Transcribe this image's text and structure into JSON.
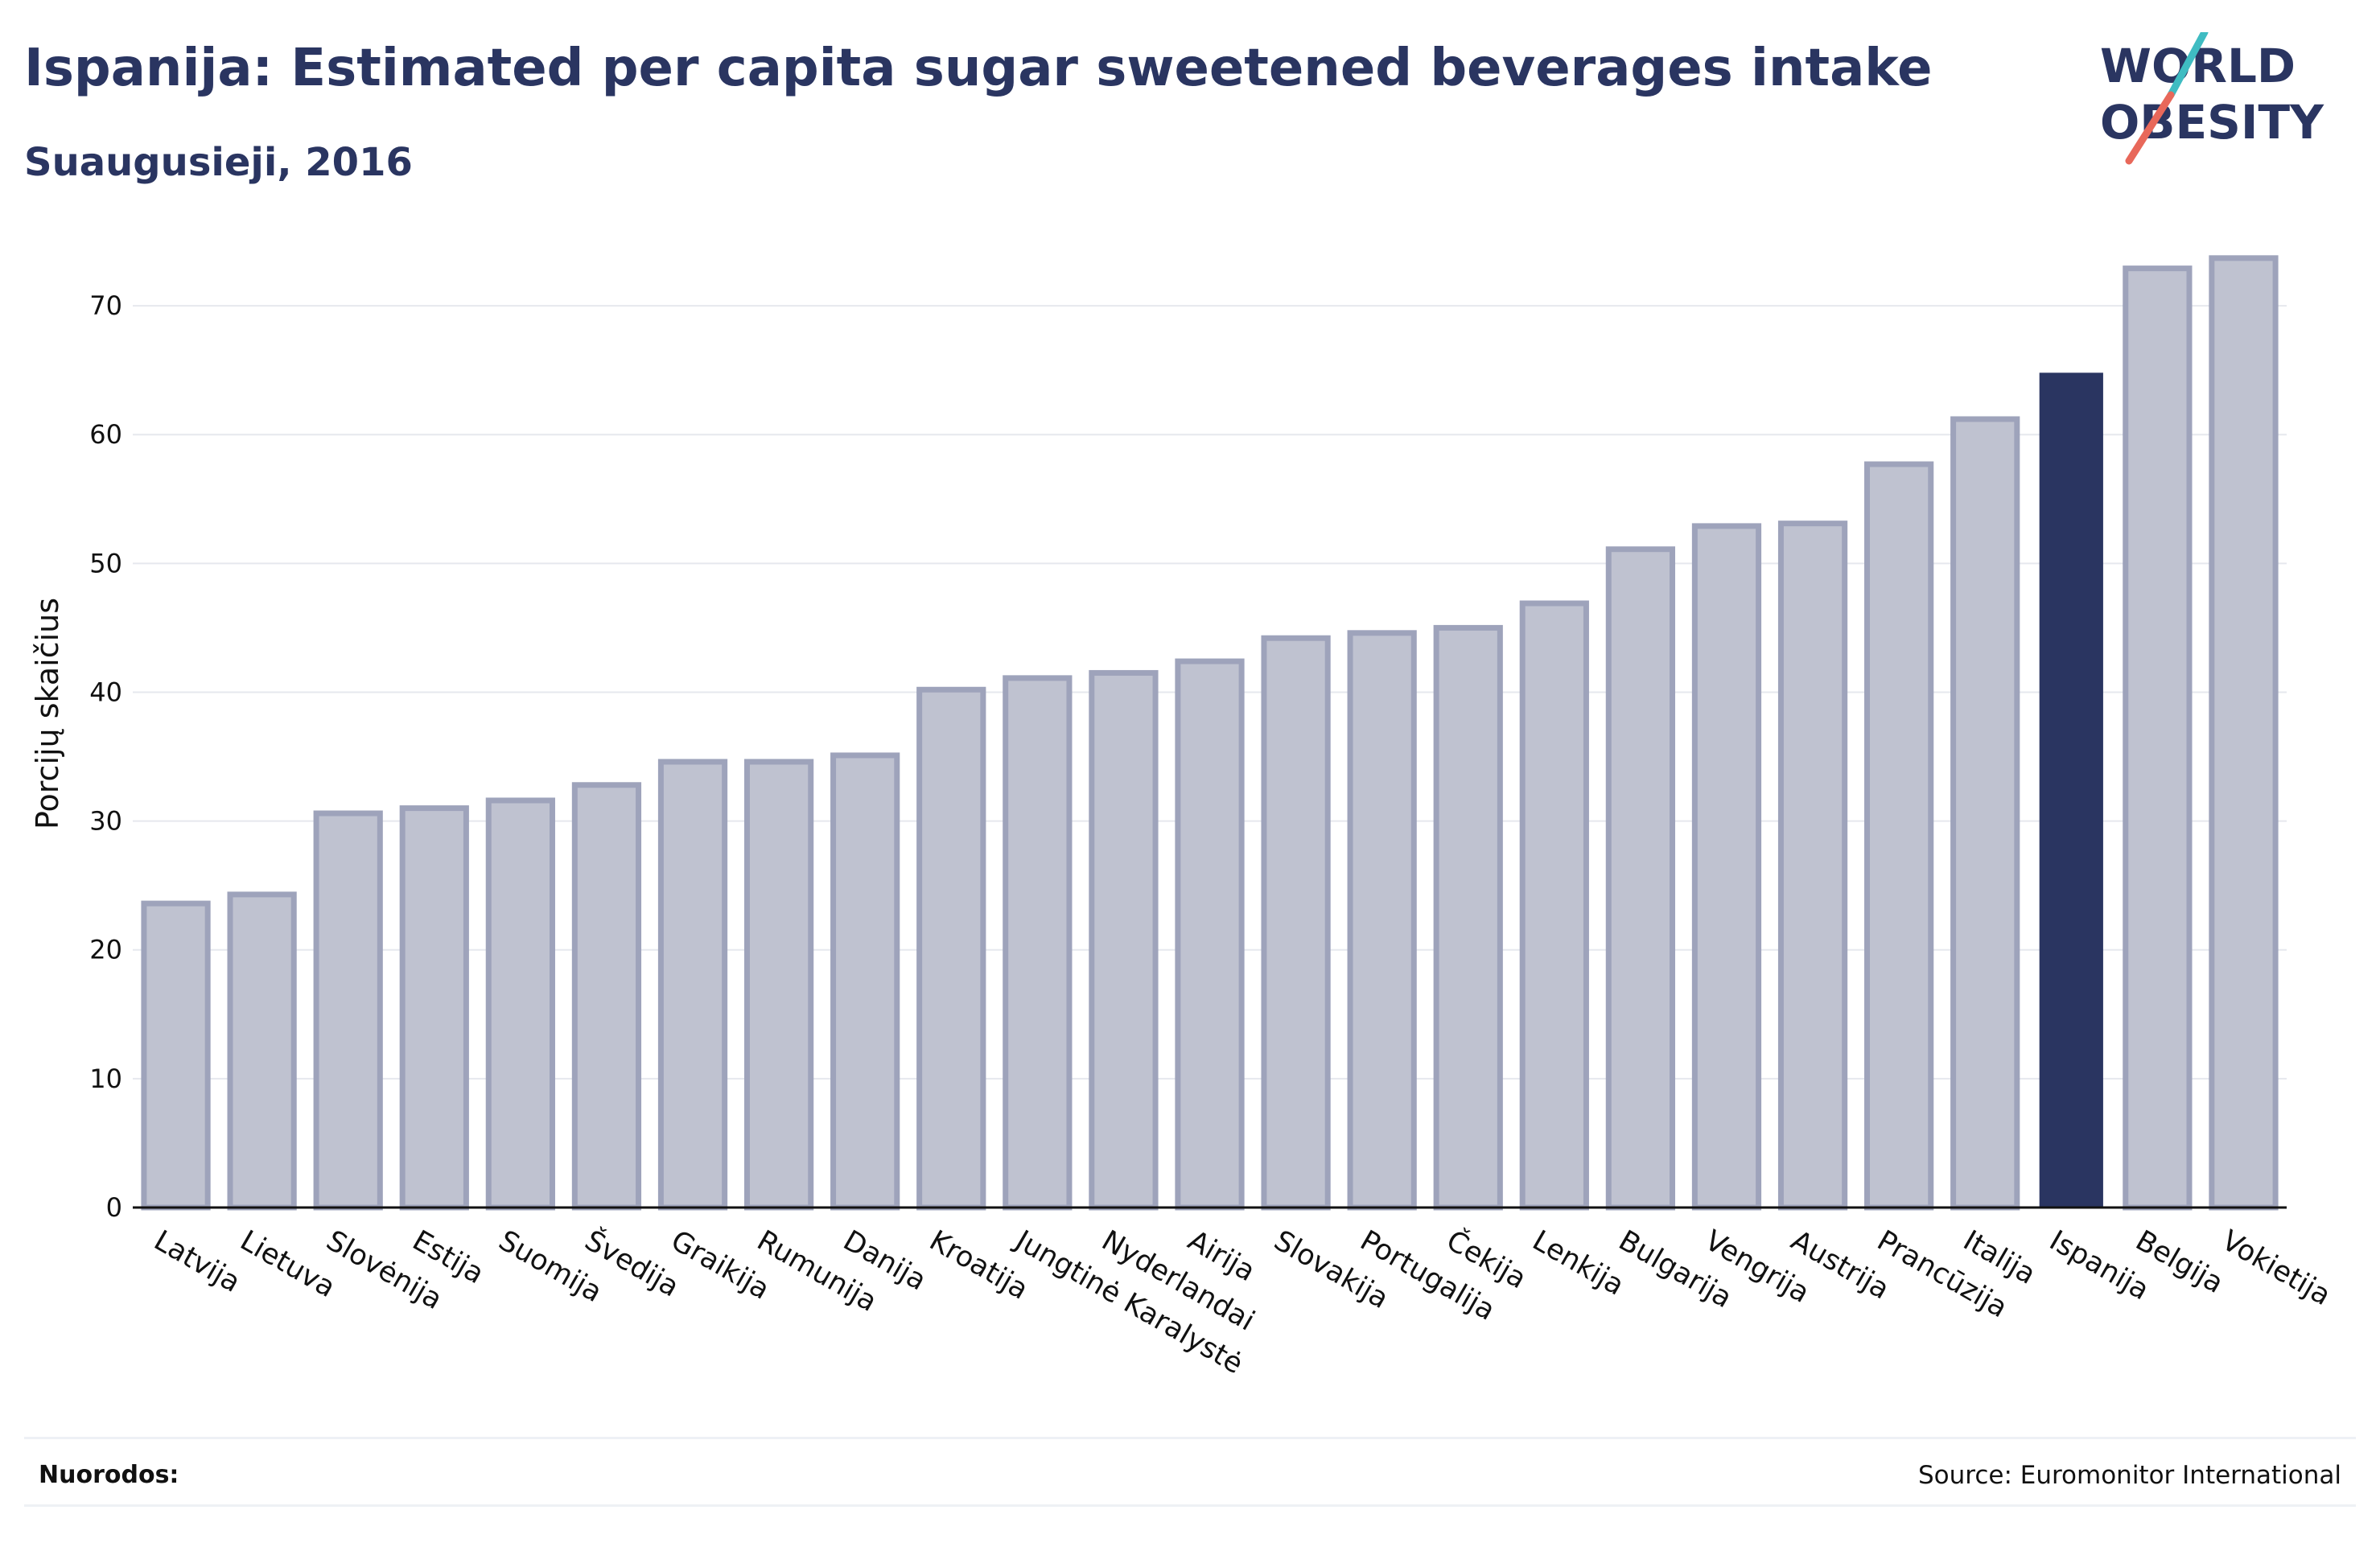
{
  "header": {
    "title": "Ispanija: Estimated per capita sugar sweetened beverages intake",
    "subtitle": "Suaugusieji, 2016"
  },
  "logo": {
    "line1": "WORLD",
    "line2": "OBESITY",
    "colors": {
      "text": "#2a3561",
      "slash_teal": "#3fbcc2",
      "slash_coral": "#e8685a"
    }
  },
  "footer": {
    "references_label": "Nuorodos:",
    "source": "Source: Euromonitor International"
  },
  "colors": {
    "bar": "#bfc2d0",
    "bar_border": "#9ea3bb",
    "highlight": "#2a3561",
    "grid": "#e6e8ee"
  },
  "chart_data": {
    "type": "bar",
    "title": "Ispanija: Estimated per capita sugar sweetened beverages intake",
    "subtitle": "Suaugusieji, 2016",
    "xlabel": "",
    "ylabel": "Porcijų skaičius",
    "ylim": [
      0,
      75
    ],
    "yticks": [
      0,
      10,
      20,
      30,
      40,
      50,
      60,
      70
    ],
    "grid": true,
    "highlight": "Ispanija",
    "categories": [
      "Latvija",
      "Lietuva",
      "Slovėnija",
      "Estija",
      "Suomija",
      "Švedija",
      "Graikija",
      "Rumunija",
      "Danija",
      "Kroatija",
      "Jungtinė Karalystė",
      "Nyderlandai",
      "Airija",
      "Slovakija",
      "Portugalija",
      "Čekija",
      "Lenkija",
      "Bulgarija",
      "Vengrija",
      "Austrija",
      "Prancūzija",
      "Italija",
      "Ispanija",
      "Belgija",
      "Vokietija"
    ],
    "values": [
      23.6,
      24.3,
      30.6,
      31.0,
      31.6,
      32.8,
      34.6,
      34.6,
      35.1,
      40.2,
      41.1,
      41.5,
      42.4,
      44.2,
      44.6,
      45.0,
      46.9,
      51.1,
      52.9,
      53.1,
      57.7,
      61.2,
      64.8,
      72.9,
      73.7
    ]
  }
}
